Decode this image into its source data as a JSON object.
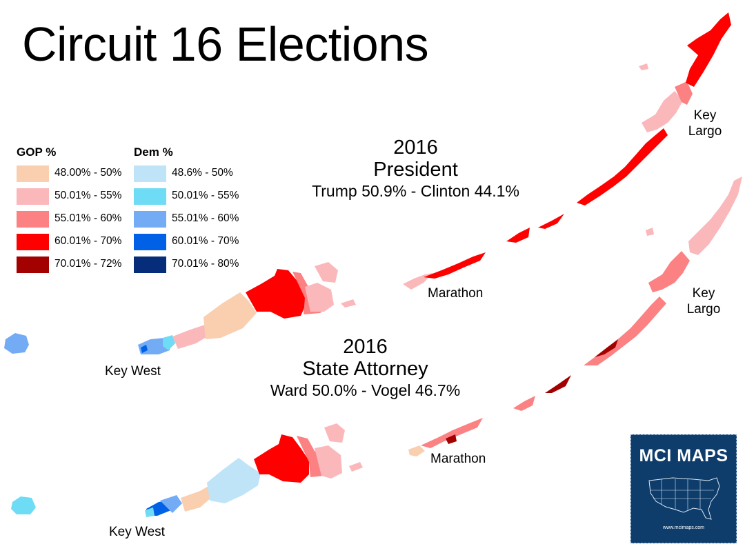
{
  "title": "Circuit 16 Elections",
  "legend": {
    "gop_heading": "GOP %",
    "dem_heading": "Dem %",
    "gop": [
      {
        "label": "48.00% - 50%",
        "color": "#f9cfb0"
      },
      {
        "label": "50.01% - 55%",
        "color": "#fbb8bb"
      },
      {
        "label": "55.01% - 60%",
        "color": "#fb8183"
      },
      {
        "label": "60.01% - 70%",
        "color": "#ff0000"
      },
      {
        "label": "70.01% - 72%",
        "color": "#a30000"
      }
    ],
    "dem": [
      {
        "label": "48.6% - 50%",
        "color": "#bfe4f8"
      },
      {
        "label": "50.01% - 55%",
        "color": "#6fdcf5"
      },
      {
        "label": "55.01% - 60%",
        "color": "#73abf5"
      },
      {
        "label": "60.01% - 70%",
        "color": "#0061e6"
      },
      {
        "label": "70.01% - 80%",
        "color": "#052d79"
      }
    ]
  },
  "races": [
    {
      "year": "2016",
      "office": "President",
      "result": "Trump 50.9% - Clinton 44.1%"
    },
    {
      "year": "2016",
      "office": "State Attorney",
      "result": "Ward 50.0% - Vogel 46.7%"
    }
  ],
  "places": {
    "key_west": "Key West",
    "marathon": "Marathon",
    "key_largo_line1": "Key",
    "key_largo_line2": "Largo"
  },
  "badge": {
    "title": "MCI MAPS",
    "url": "www.mcimaps.com",
    "background": "#0e3d6c"
  }
}
